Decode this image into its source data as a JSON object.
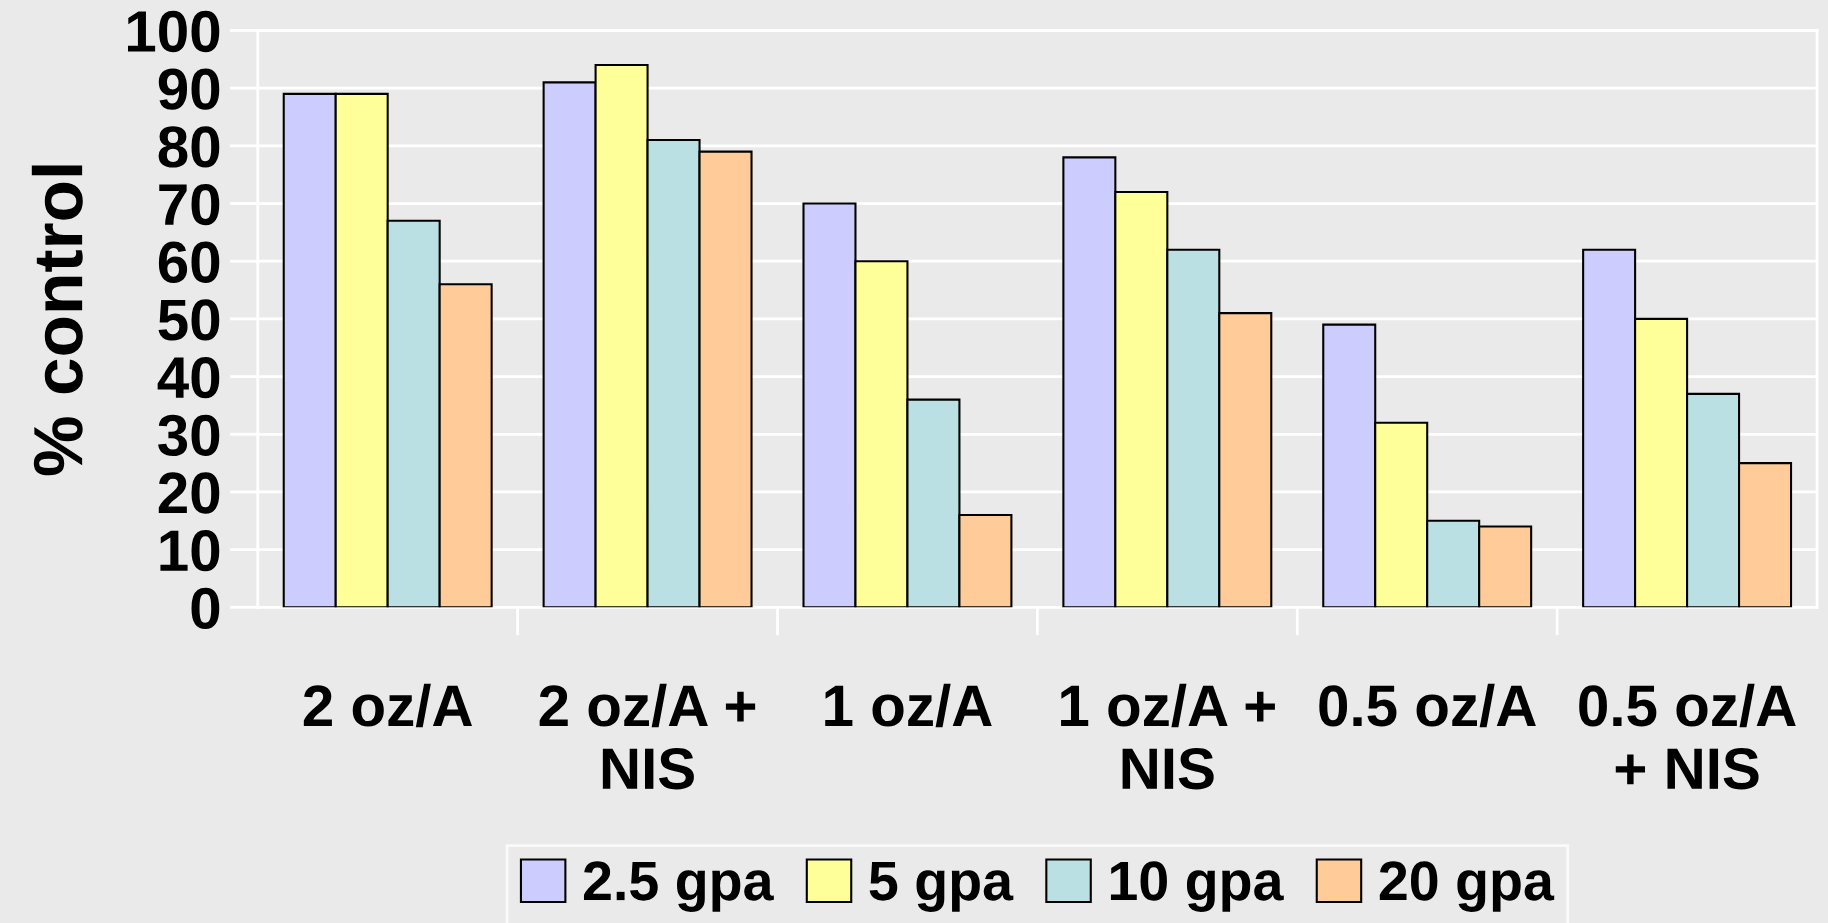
{
  "chart_data": {
    "type": "bar",
    "ylabel": "% control",
    "categories": [
      "2 oz/A",
      "2 oz/A +\nNIS",
      "1 oz/A",
      "1 oz/A +\nNIS",
      "0.5 oz/A",
      "0.5 oz/A\n+ NIS"
    ],
    "series": [
      {
        "name": "2.5 gpa",
        "color": "#ccccff",
        "values": [
          89,
          91,
          70,
          78,
          49,
          62
        ]
      },
      {
        "name": "5 gpa",
        "color": "#ffff99",
        "values": [
          89,
          94,
          60,
          72,
          32,
          50
        ]
      },
      {
        "name": "10 gpa",
        "color": "#bbe0e3",
        "values": [
          67,
          81,
          36,
          62,
          15,
          37
        ]
      },
      {
        "name": "20 gpa",
        "color": "#ffcc99",
        "values": [
          56,
          79,
          16,
          51,
          14,
          25
        ]
      }
    ],
    "ylim": [
      0,
      100
    ],
    "yticks": [
      0,
      10,
      20,
      30,
      40,
      50,
      60,
      70,
      80,
      90,
      100
    ],
    "grid": "y",
    "legend": "bottom"
  }
}
